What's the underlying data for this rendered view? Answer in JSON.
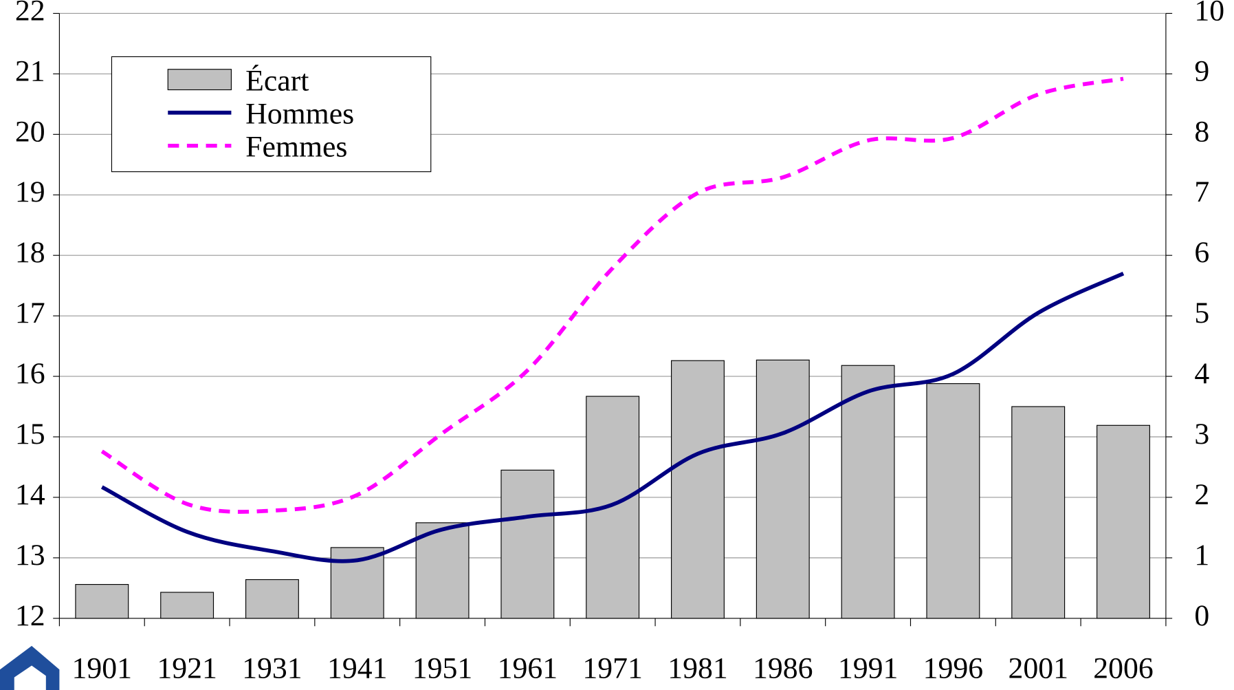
{
  "chart_data": {
    "type": "bar-line",
    "categories": [
      "1901",
      "1921",
      "1931",
      "1941",
      "1951",
      "1961",
      "1971",
      "1981",
      "1986",
      "1991",
      "1996",
      "2001",
      "2006"
    ],
    "series": [
      {
        "name": "Écart",
        "type": "bar",
        "axis": "y2",
        "color": "#c0c0c0",
        "values": [
          0.56,
          0.43,
          0.64,
          1.17,
          1.58,
          2.45,
          3.67,
          4.26,
          4.27,
          4.18,
          3.88,
          3.5,
          3.19
        ]
      },
      {
        "name": "Hommes",
        "type": "line",
        "color": "#000080",
        "values": [
          14.17,
          13.43,
          13.11,
          12.96,
          13.47,
          13.68,
          13.88,
          14.72,
          15.06,
          15.75,
          16.04,
          17.05,
          17.7
        ]
      },
      {
        "name": "Femmes",
        "type": "line",
        "color": "#ff00ff",
        "dashed": true,
        "values": [
          14.76,
          13.89,
          13.78,
          14.04,
          15.06,
          16.1,
          17.79,
          19.03,
          19.29,
          19.9,
          19.94,
          20.66,
          20.92
        ]
      }
    ],
    "ylim": [
      12,
      22
    ],
    "yticks": [
      12,
      13,
      14,
      15,
      16,
      17,
      18,
      19,
      20,
      21,
      22
    ],
    "y2lim": [
      0,
      10
    ],
    "y2ticks": [
      0,
      1,
      2,
      3,
      4,
      5,
      6,
      7,
      8,
      9,
      10
    ],
    "grid": true,
    "legend": "top-left"
  }
}
